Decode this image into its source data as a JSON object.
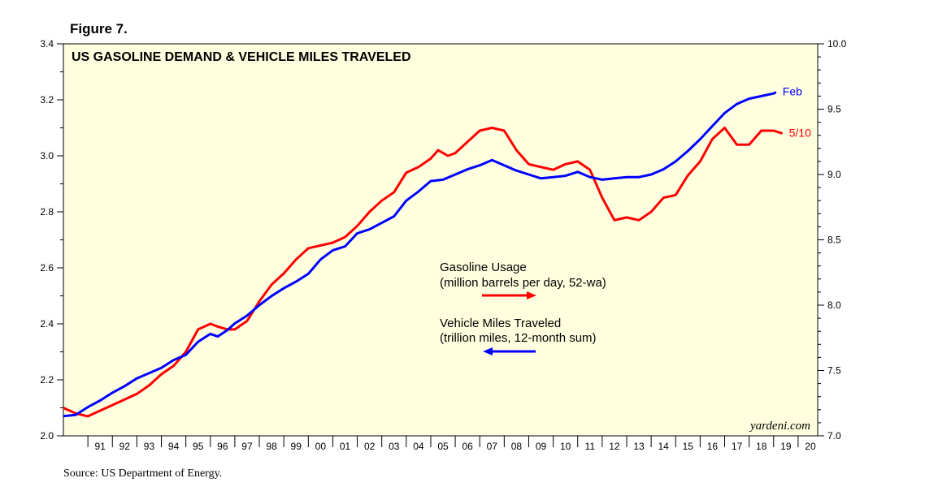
{
  "figure_label": "Figure 7.",
  "source": "Source: US Department of Energy.",
  "chart_data": {
    "type": "line",
    "title": "US GASOLINE DEMAND & VEHICLE MILES TRAVELED",
    "credit": "yardeni.com",
    "x_tick_labels": [
      "91",
      "92",
      "93",
      "94",
      "95",
      "96",
      "97",
      "98",
      "99",
      "00",
      "01",
      "02",
      "03",
      "04",
      "05",
      "06",
      "07",
      "08",
      "09",
      "10",
      "11",
      "12",
      "13",
      "14",
      "15",
      "16",
      "17",
      "18",
      "19",
      "20"
    ],
    "xlim": [
      1990.0,
      2020.8
    ],
    "y_left": {
      "ylim": [
        2.0,
        3.4
      ],
      "ticks": [
        "2.0",
        "2.2",
        "2.4",
        "2.6",
        "2.8",
        "3.0",
        "3.2",
        "3.4"
      ]
    },
    "y_right": {
      "ylim": [
        7.0,
        10.0
      ],
      "ticks": [
        "7.0",
        "7.5",
        "8.0",
        "8.5",
        "9.0",
        "9.5",
        "10.0"
      ]
    },
    "background_color": "#ffffe0",
    "legend": [
      {
        "label_line1": "Gasoline Usage",
        "label_line2": "(million barrels per day, 52-wa)",
        "arrow": "right",
        "color": "#ff0000"
      },
      {
        "label_line1": "Vehicle Miles Traveled",
        "label_line2": "(trillion miles, 12-month sum)",
        "arrow": "left",
        "color": "#0000ff"
      }
    ],
    "series": [
      {
        "name": "Gasoline Usage",
        "axis": "left",
        "color": "#ff0000",
        "end_label": "5/10",
        "x": [
          1990.0,
          1990.5,
          1991.0,
          1991.5,
          1992.0,
          1992.5,
          1993.0,
          1993.5,
          1994.0,
          1994.5,
          1995.0,
          1995.5,
          1996.0,
          1996.3,
          1996.7,
          1997.0,
          1997.5,
          1998.0,
          1998.5,
          1999.0,
          1999.5,
          2000.0,
          2000.5,
          2001.0,
          2001.5,
          2002.0,
          2002.5,
          2003.0,
          2003.5,
          2004.0,
          2004.5,
          2005.0,
          2005.3,
          2005.7,
          2006.0,
          2006.5,
          2007.0,
          2007.5,
          2008.0,
          2008.5,
          2009.0,
          2009.5,
          2010.0,
          2010.5,
          2011.0,
          2011.5,
          2012.0,
          2012.5,
          2013.0,
          2013.5,
          2014.0,
          2014.5,
          2015.0,
          2015.5,
          2016.0,
          2016.5,
          2017.0,
          2017.5,
          2018.0,
          2018.5,
          2019.0,
          2019.36
        ],
        "y": [
          2.1,
          2.08,
          2.07,
          2.09,
          2.11,
          2.13,
          2.15,
          2.18,
          2.22,
          2.25,
          2.3,
          2.38,
          2.4,
          2.39,
          2.38,
          2.38,
          2.41,
          2.48,
          2.54,
          2.58,
          2.63,
          2.67,
          2.68,
          2.69,
          2.71,
          2.75,
          2.8,
          2.84,
          2.87,
          2.94,
          2.96,
          2.99,
          3.02,
          3.0,
          3.01,
          3.05,
          3.09,
          3.1,
          3.09,
          3.02,
          2.97,
          2.96,
          2.95,
          2.97,
          2.98,
          2.95,
          2.85,
          2.77,
          2.78,
          2.77,
          2.8,
          2.85,
          2.86,
          2.93,
          2.98,
          3.06,
          3.1,
          3.04,
          3.04,
          3.09,
          3.09,
          3.08
        ]
      },
      {
        "name": "Vehicle Miles Traveled",
        "axis": "right",
        "color": "#0000ff",
        "end_label": "Feb",
        "x": [
          1990.0,
          1990.5,
          1991.0,
          1991.5,
          1992.0,
          1992.5,
          1993.0,
          1993.5,
          1994.0,
          1994.5,
          1995.0,
          1995.5,
          1996.0,
          1996.3,
          1996.7,
          1997.0,
          1997.5,
          1998.0,
          1998.5,
          1999.0,
          1999.5,
          2000.0,
          2000.5,
          2001.0,
          2001.5,
          2002.0,
          2002.5,
          2003.0,
          2003.5,
          2004.0,
          2004.5,
          2005.0,
          2005.5,
          2006.0,
          2006.5,
          2007.0,
          2007.5,
          2008.0,
          2008.5,
          2009.0,
          2009.5,
          2010.0,
          2010.5,
          2011.0,
          2011.5,
          2012.0,
          2012.5,
          2013.0,
          2013.5,
          2014.0,
          2014.5,
          2015.0,
          2015.5,
          2016.0,
          2016.5,
          2017.0,
          2017.5,
          2018.0,
          2018.5,
          2019.0,
          2019.1
        ],
        "y": [
          7.15,
          7.16,
          7.22,
          7.27,
          7.33,
          7.38,
          7.44,
          7.48,
          7.52,
          7.58,
          7.62,
          7.72,
          7.78,
          7.76,
          7.81,
          7.86,
          7.92,
          8.0,
          8.07,
          8.13,
          8.18,
          8.24,
          8.35,
          8.42,
          8.45,
          8.55,
          8.58,
          8.63,
          8.68,
          8.8,
          8.87,
          8.95,
          8.96,
          9.0,
          9.04,
          9.07,
          9.11,
          9.07,
          9.03,
          9.0,
          8.97,
          8.98,
          8.99,
          9.02,
          8.98,
          8.96,
          8.97,
          8.98,
          8.98,
          9.0,
          9.04,
          9.1,
          9.18,
          9.27,
          9.37,
          9.47,
          9.54,
          9.58,
          9.6,
          9.62,
          9.63
        ]
      }
    ]
  }
}
